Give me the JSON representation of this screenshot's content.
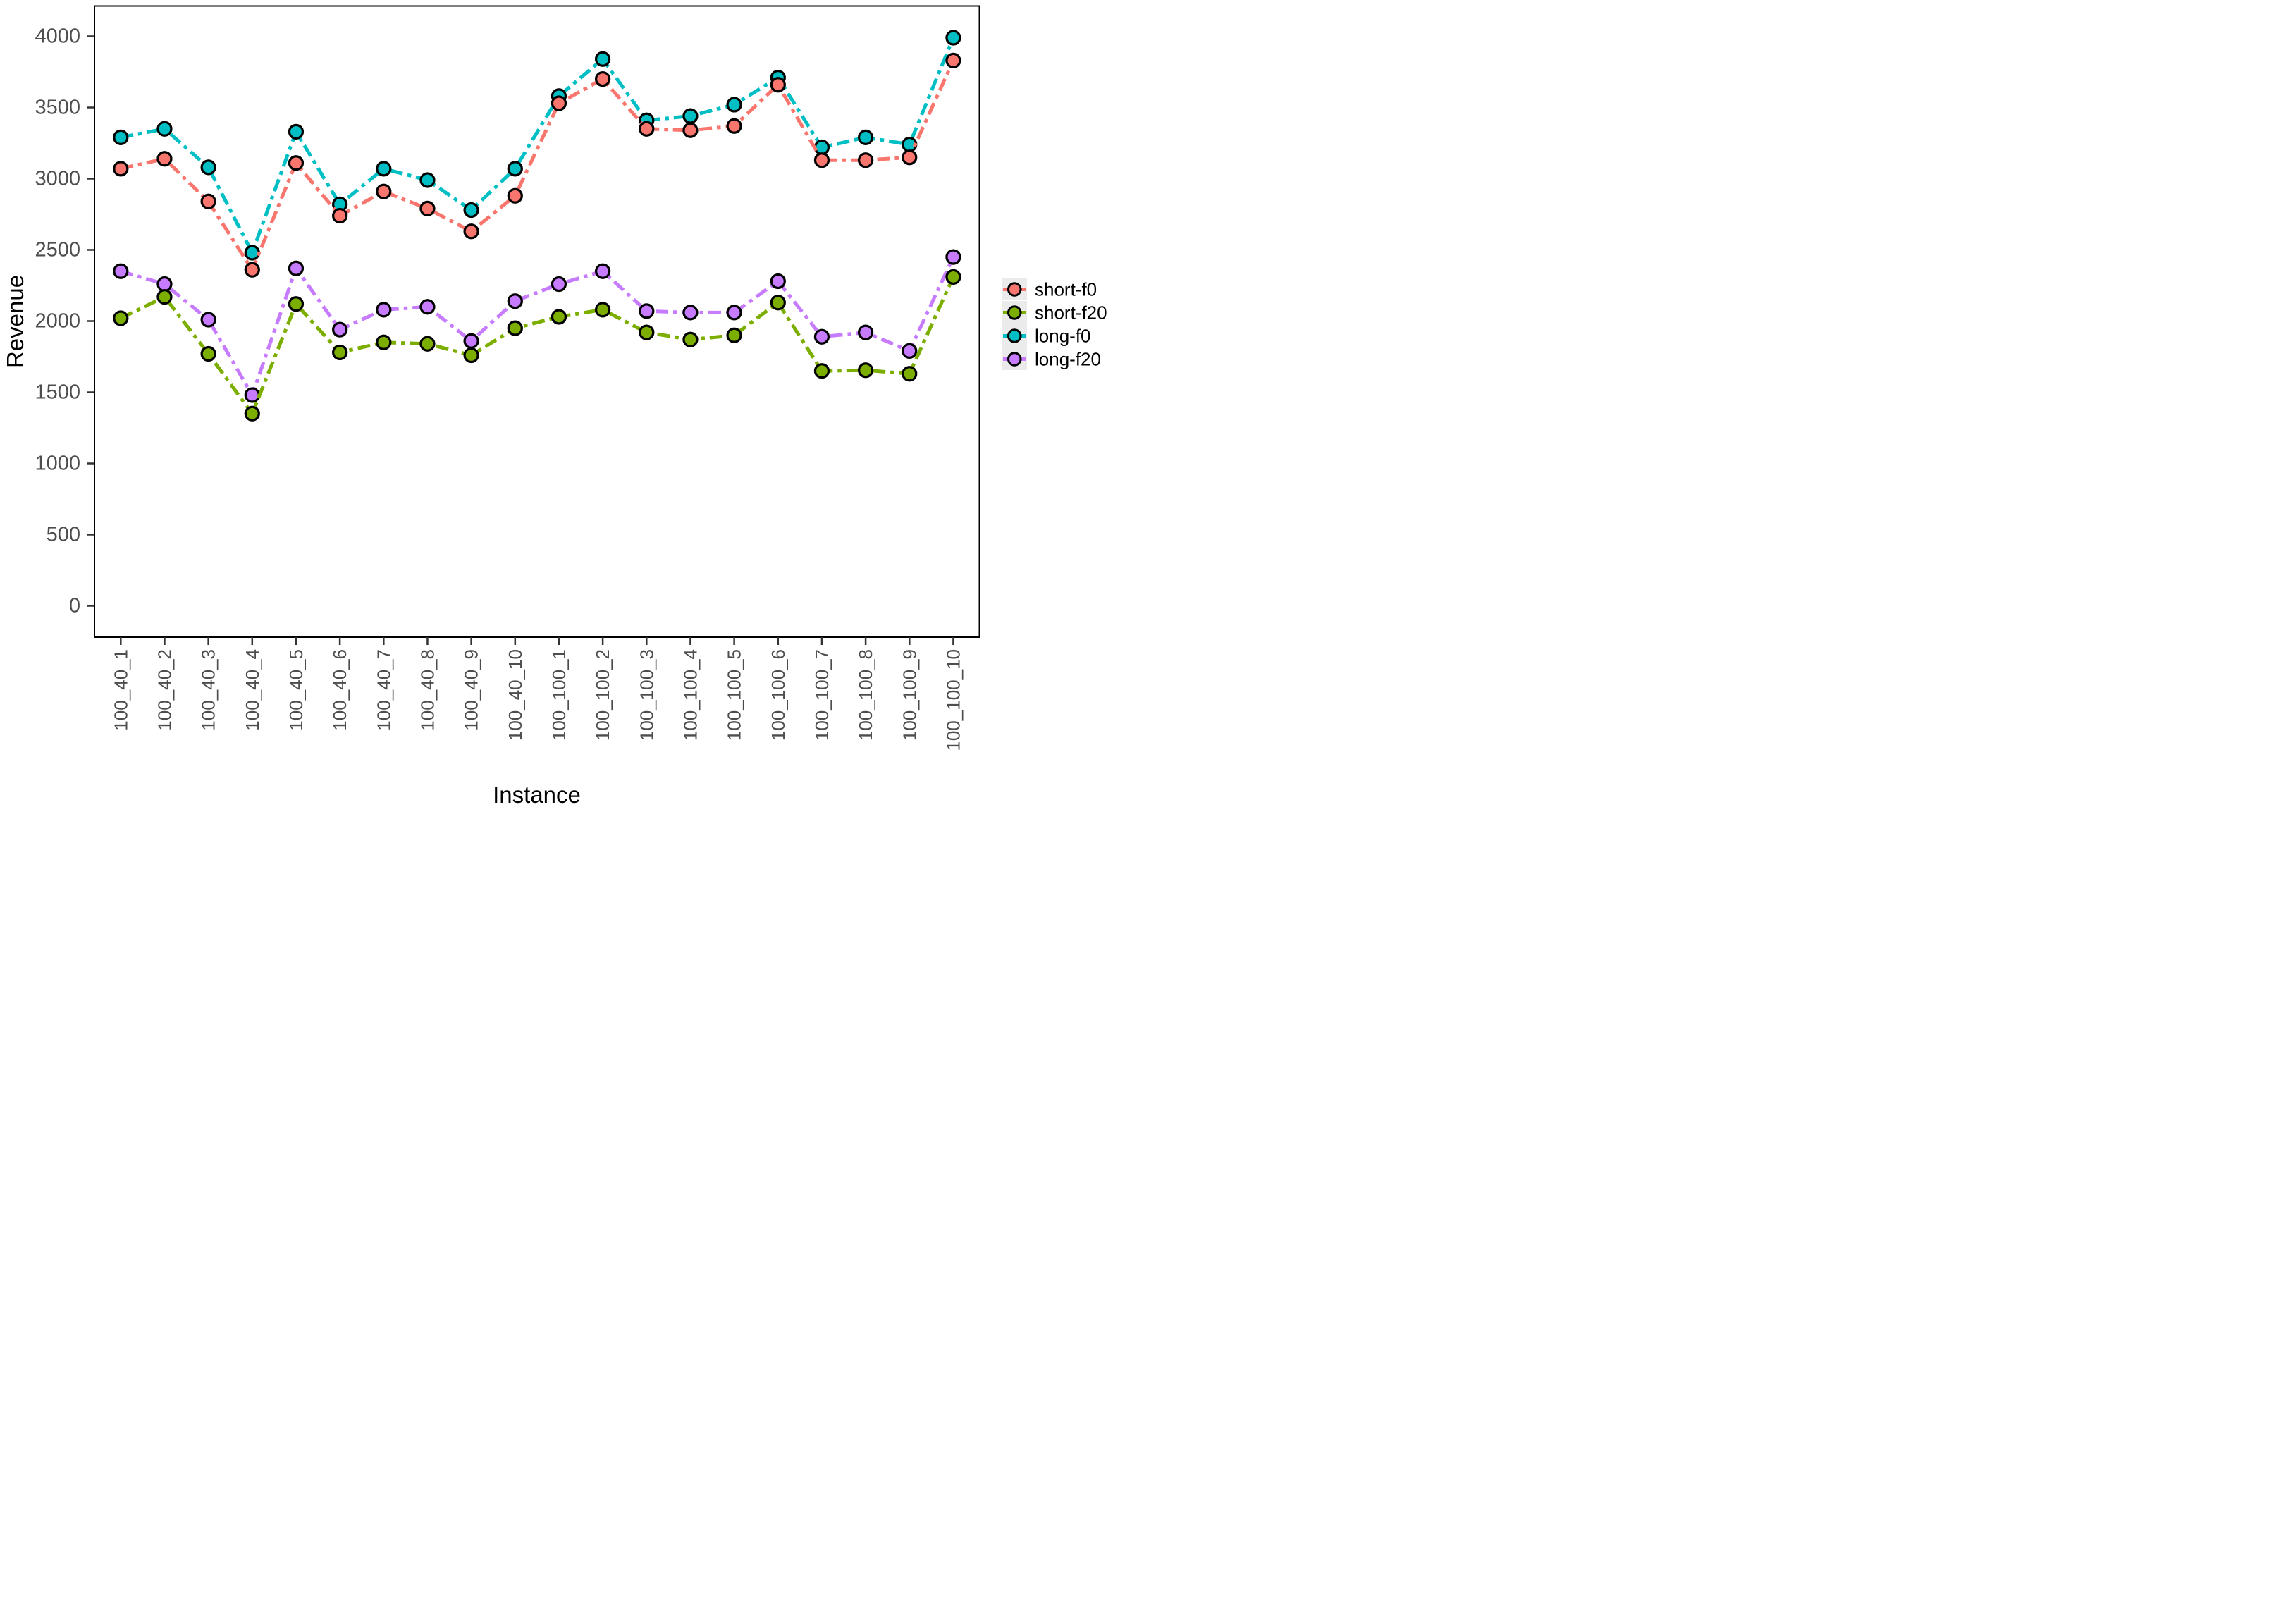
{
  "figure": {
    "background": "#ffffff",
    "text_color_axis_ticks": "#4d4d4d",
    "text_color_axis_titles": "#000000",
    "panel_border_color": "#000000",
    "legend_key_fill": "#ebebeb"
  },
  "chart_data": {
    "type": "line",
    "title": "",
    "xlabel": "Instance",
    "ylabel": "Revenue",
    "ylim": [
      0,
      4000
    ],
    "y_ticks": [
      0,
      500,
      1000,
      1500,
      2000,
      2500,
      3000,
      3500,
      4000
    ],
    "y_tick_labels": [
      "0",
      "500",
      "1000",
      "1500",
      "2000",
      "2500",
      "3000",
      "3500",
      "4000"
    ],
    "grid": false,
    "legend_position": "right",
    "line_style": "dash-dot",
    "marker": "circle-black-outline",
    "categories": [
      "100_40_1",
      "100_40_2",
      "100_40_3",
      "100_40_4",
      "100_40_5",
      "100_40_6",
      "100_40_7",
      "100_40_8",
      "100_40_9",
      "100_40_10",
      "100_100_1",
      "100_100_2",
      "100_100_3",
      "100_100_4",
      "100_100_5",
      "100_100_6",
      "100_100_7",
      "100_100_8",
      "100_100_9",
      "100_100_10"
    ],
    "series": [
      {
        "name": "short-f0",
        "color": "#F8766D",
        "values": [
          3070,
          3140,
          2840,
          2360,
          3110,
          2740,
          2910,
          2790,
          2630,
          2880,
          3530,
          3700,
          3350,
          3340,
          3370,
          3660,
          3130,
          3130,
          3150,
          3830
        ]
      },
      {
        "name": "short-f20",
        "color": "#7CAE00",
        "values": [
          2020,
          2170,
          1770,
          1350,
          2120,
          1780,
          1850,
          1840,
          1760,
          1950,
          2030,
          2080,
          1920,
          1870,
          1900,
          2130,
          1650,
          1655,
          1630,
          2310
        ]
      },
      {
        "name": "long-f0",
        "color": "#00BFC4",
        "values": [
          3290,
          3350,
          3080,
          2480,
          3330,
          2820,
          3070,
          2990,
          2780,
          3070,
          3580,
          3840,
          3410,
          3440,
          3520,
          3710,
          3220,
          3290,
          3240,
          3990
        ]
      },
      {
        "name": "long-f20",
        "color": "#C77CFF",
        "values": [
          2350,
          2260,
          2010,
          1480,
          2370,
          1940,
          2080,
          2100,
          1860,
          2140,
          2260,
          2350,
          2070,
          2060,
          2060,
          2280,
          1890,
          1920,
          1790,
          2450
        ]
      }
    ],
    "legend_items": [
      "short-f0",
      "short-f20",
      "long-f0",
      "long-f20"
    ]
  }
}
